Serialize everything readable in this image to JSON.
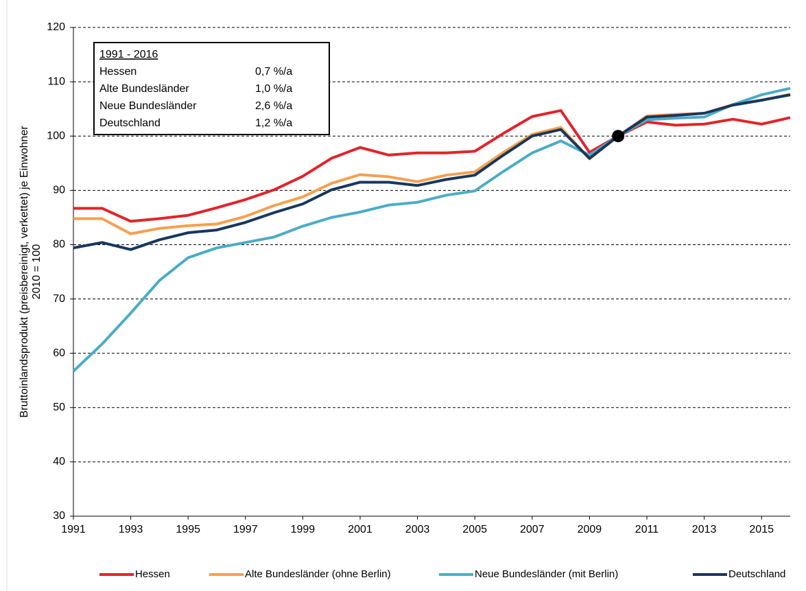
{
  "chart_data": {
    "type": "line",
    "y_label": [
      "Bruttoinlandsprodukt  (preisbereinigt, verkettet)  je Einwohner",
      "2010 = 100"
    ],
    "x": [
      1991,
      1992,
      1993,
      1994,
      1995,
      1996,
      1997,
      1998,
      1999,
      2000,
      2001,
      2002,
      2003,
      2004,
      2005,
      2006,
      2007,
      2008,
      2009,
      2010,
      2011,
      2012,
      2013,
      2014,
      2015,
      2016
    ],
    "series": [
      {
        "name": "Hessen",
        "color": "#e3232a",
        "values": [
          86.7,
          86.7,
          84.3,
          84.8,
          85.4,
          86.8,
          88.3,
          90.1,
          92.6,
          95.9,
          97.9,
          96.5,
          96.9,
          96.9,
          97.2,
          100.5,
          103.6,
          104.7,
          97.0,
          100,
          102.6,
          102.0,
          102.2,
          103.1,
          102.2,
          103.4
        ]
      },
      {
        "name": "Alte Bundesländer (ohne Berlin)",
        "color": "#f5a04e",
        "values": [
          84.8,
          84.8,
          82.0,
          83.0,
          83.5,
          83.8,
          85.2,
          87.2,
          88.8,
          91.3,
          92.9,
          92.5,
          91.6,
          92.8,
          93.4,
          97.0,
          100.3,
          101.6,
          95.8,
          100,
          103.7,
          104.0,
          104.2,
          105.8,
          106.6,
          107.7
        ]
      },
      {
        "name": "Neue Bundesländer (mit Berlin)",
        "color": "#4bacc6",
        "values": [
          56.7,
          61.7,
          67.4,
          73.4,
          77.6,
          79.4,
          80.4,
          81.4,
          83.4,
          85.0,
          86.0,
          87.3,
          87.8,
          89.1,
          89.9,
          93.5,
          96.9,
          99.1,
          96.5,
          100,
          103.0,
          103.3,
          103.5,
          105.8,
          107.6,
          108.8
        ]
      },
      {
        "name": "Deutschland",
        "color": "#17375e",
        "values": [
          79.4,
          80.4,
          79.1,
          80.9,
          82.2,
          82.7,
          84.1,
          85.9,
          87.5,
          90.1,
          91.5,
          91.5,
          90.9,
          92.0,
          92.8,
          96.5,
          100.0,
          101.2,
          95.9,
          100,
          103.5,
          103.8,
          104.2,
          105.7,
          106.6,
          107.6
        ]
      }
    ],
    "marker": {
      "x": 2010,
      "y": 100,
      "color": "#000000"
    },
    "xlim": [
      1991,
      2016
    ],
    "xticks": [
      1991,
      1993,
      1995,
      1997,
      1999,
      2001,
      2003,
      2005,
      2007,
      2009,
      2011,
      2013,
      2015
    ],
    "ylim": [
      30,
      120
    ],
    "yticks": [
      30,
      40,
      50,
      60,
      70,
      80,
      90,
      100,
      110,
      120
    ],
    "grid": true,
    "legend": "bottom",
    "annotation": {
      "title": "1991 - 2016",
      "rows": [
        [
          "Hessen",
          "0,7 %/a"
        ],
        [
          "Alte Bundesländer",
          "1,0 %/a"
        ],
        [
          "Neue Bundesländer",
          "2,6 %/a"
        ],
        [
          "Deutschland",
          "1,2 %/a"
        ]
      ]
    }
  }
}
